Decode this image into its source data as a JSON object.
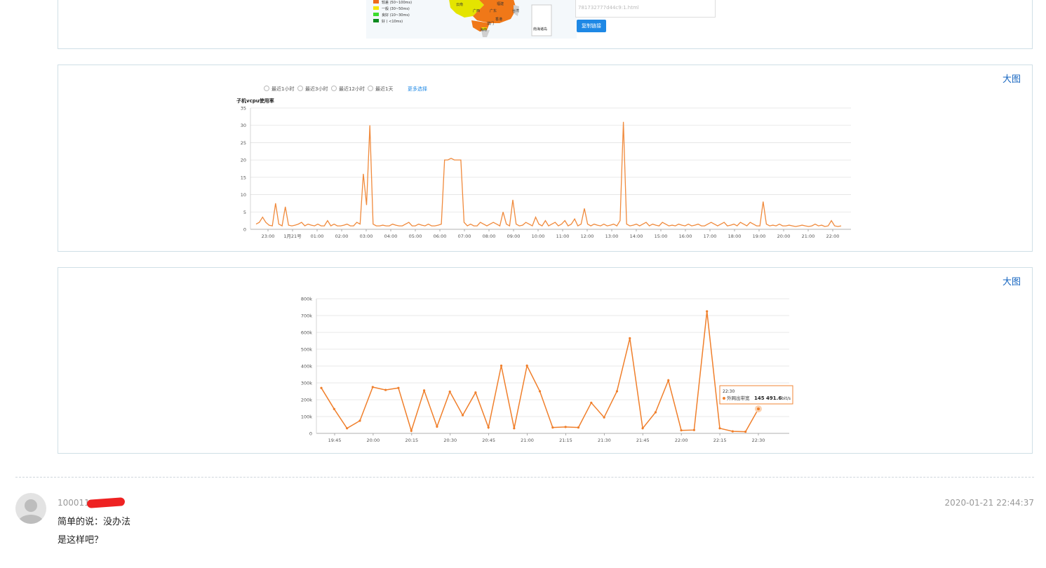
{
  "panels": {
    "big_image_label": "大图"
  },
  "map": {
    "legend": [
      {
        "label": "较差 (50~100ms)",
        "color": "#ef6a1a"
      },
      {
        "label": "一般 (30~50ms)",
        "color": "#f6e500"
      },
      {
        "label": "良好 (10~30ms)",
        "color": "#3ddc2d"
      },
      {
        "label": "好 ( <10ms)",
        "color": "#0d8a1e"
      }
    ],
    "places": [
      "云南",
      "广西",
      "广东",
      "福建",
      "台湾",
      "香港",
      "澳门",
      "海南",
      "南海诸岛"
    ],
    "link_text": "781732777d44c9:1.html",
    "copy_button": "复制链接",
    "colors": {
      "orange": "#f07818",
      "yellow": "#e4e400",
      "blue": "#1e88e5"
    }
  },
  "cpu_chart": {
    "options": [
      "最近1小时",
      "最近3小时",
      "最近12小时",
      "最近1天"
    ],
    "more_link": "更多选择",
    "title": "子机vcpu使用率",
    "chart_data": {
      "type": "line",
      "title": "子机vcpu使用率",
      "ylim": [
        0,
        35
      ],
      "yticks": [
        "35",
        "30",
        "25",
        "20",
        "15",
        "10",
        "5",
        "0"
      ],
      "xticks": [
        "23:00",
        "1月21号",
        "01:00",
        "02:00",
        "03:00",
        "04:00",
        "05:00",
        "06:00",
        "07:00",
        "08:00",
        "09:00",
        "10:00",
        "11:00",
        "12:00",
        "13:00",
        "14:00",
        "15:00",
        "16:00",
        "17:00",
        "18:00",
        "19:00",
        "20:00",
        "21:00",
        "22:00"
      ],
      "series": [
        {
          "color": "#f08a3c",
          "values": [
            1.5,
            2,
            3.5,
            2,
            1.2,
            1,
            7.5,
            1.5,
            1,
            6.5,
            1.2,
            1,
            1.2,
            1.5,
            2,
            1,
            1.5,
            1.2,
            1,
            1.5,
            1,
            1,
            2.5,
            1,
            1.5,
            1,
            1,
            1.2,
            1.5,
            1,
            1,
            2,
            1.5,
            16,
            7,
            30,
            1.5,
            1,
            1,
            1.2,
            1,
            1,
            1.5,
            1.2,
            1,
            1,
            1.5,
            2,
            1,
            1,
            1.5,
            1.2,
            1,
            1.5,
            1,
            1,
            1.2,
            1.5,
            20,
            20,
            20.5,
            20,
            20,
            20,
            2,
            1,
            1.5,
            1,
            1,
            2,
            1.5,
            1,
            1.5,
            2,
            1.5,
            1,
            5,
            1.5,
            1,
            8.5,
            1.5,
            1,
            1.2,
            2,
            1.5,
            1,
            3.5,
            1.5,
            1,
            2.5,
            1,
            1.5,
            2,
            1,
            1.5,
            2.5,
            1,
            1.5,
            3,
            1,
            1.5,
            6,
            1.5,
            1,
            1.5,
            1.2,
            1,
            1.5,
            1,
            1.2,
            1.5,
            1,
            2.5,
            31,
            1.5,
            1,
            1.2,
            1.5,
            1,
            1.5,
            2,
            1,
            1.5,
            1.2,
            1,
            2,
            1.5,
            1,
            1.2,
            1,
            1.5,
            1.2,
            1,
            1.5,
            1,
            1.2,
            1.5,
            1,
            1,
            1.5,
            2,
            1.5,
            1,
            1.5,
            2,
            1,
            1.2,
            1.5,
            1,
            2,
            1.5,
            1,
            2,
            1.5,
            1,
            1,
            8,
            1.5,
            1,
            1.2,
            1,
            1.5,
            1,
            1,
            1.2,
            1,
            0.8,
            1,
            1.2,
            1,
            0.8,
            1,
            1.5,
            1,
            1.2,
            0.8,
            1,
            2.5,
            1,
            0.8,
            1
          ]
        }
      ]
    }
  },
  "bw_chart": {
    "chart_data": {
      "type": "line",
      "ylim": [
        0,
        800000
      ],
      "yticks": [
        "800k",
        "700k",
        "600k",
        "500k",
        "400k",
        "300k",
        "200k",
        "100k",
        "0"
      ],
      "xticks": [
        "19:45",
        "20:00",
        "20:15",
        "20:30",
        "20:45",
        "21:00",
        "21:15",
        "21:30",
        "21:45",
        "22:00",
        "22:15",
        "22:30"
      ],
      "series": [
        {
          "name": "外网出带宽",
          "color": "#f07f2b",
          "values": [
            270000,
            145000,
            30000,
            75000,
            275000,
            258000,
            270000,
            15000,
            255000,
            40000,
            248000,
            108000,
            243000,
            35000,
            402000,
            30000,
            402000,
            250000,
            35000,
            38000,
            35000,
            182000,
            95000,
            250000,
            565000,
            30000,
            125000,
            315000,
            18000,
            20000,
            725000,
            30000,
            12000,
            10000,
            145491.6
          ]
        }
      ],
      "tooltip": {
        "time": "22:30",
        "series": "外网出带宽",
        "value": "145 491.6",
        "unit": "bit/s"
      }
    }
  },
  "comment": {
    "username": "100011",
    "timestamp": "2020-01-21 22:44:37",
    "lines": [
      "简单的说：没办法",
      "是这样吧？"
    ]
  }
}
